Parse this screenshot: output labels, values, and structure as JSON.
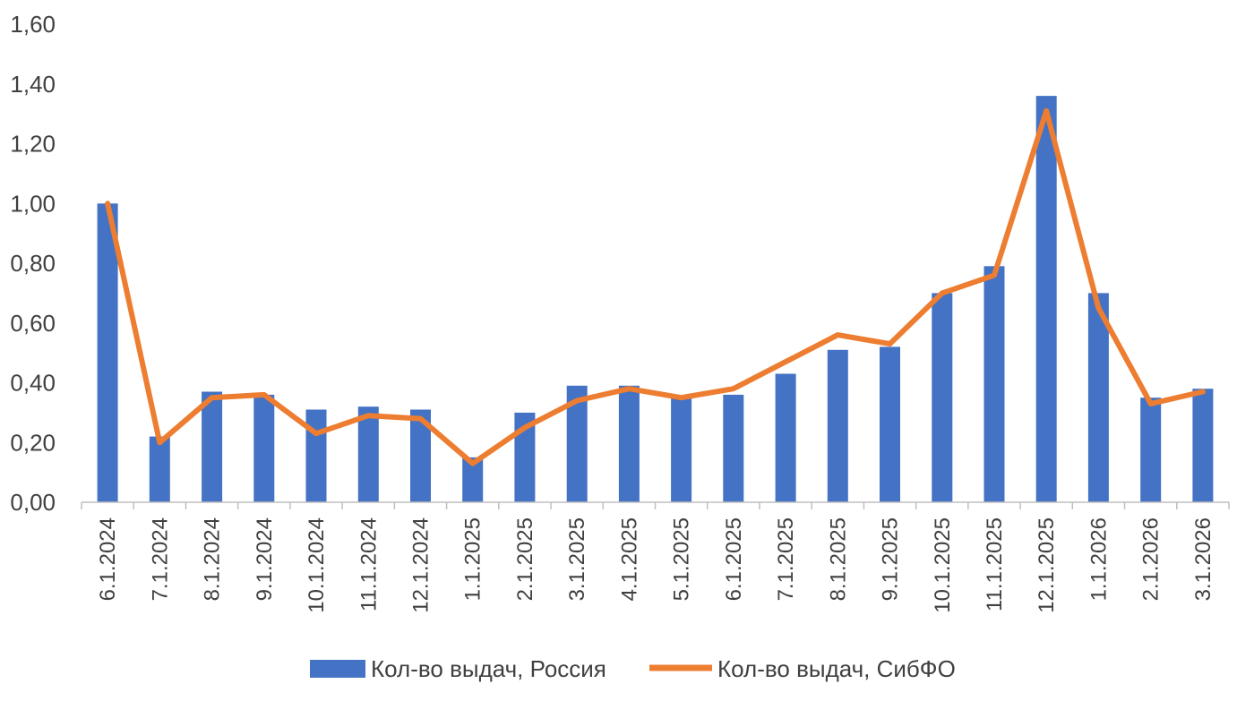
{
  "chart_data": {
    "type": "bar+line",
    "title": "",
    "xlabel": "",
    "ylabel": "",
    "ylim": [
      0,
      1.6
    ],
    "yticks": [
      "0,00",
      "0,20",
      "0,40",
      "0,60",
      "0,80",
      "1,00",
      "1,20",
      "1,40",
      "1,60"
    ],
    "ytick_values": [
      0,
      0.2,
      0.4,
      0.6,
      0.8,
      1.0,
      1.2,
      1.4,
      1.6
    ],
    "categories": [
      "6.1.2024",
      "7.1.2024",
      "8.1.2024",
      "9.1.2024",
      "10.1.2024",
      "11.1.2024",
      "12.1.2024",
      "1.1.2025",
      "2.1.2025",
      "3.1.2025",
      "4.1.2025",
      "5.1.2025",
      "6.1.2025",
      "7.1.2025",
      "8.1.2025",
      "9.1.2025",
      "10.1.2025",
      "11.1.2025",
      "12.1.2025",
      "1.1.2026",
      "2.1.2026",
      "3.1.2026"
    ],
    "series": [
      {
        "name": "Кол-во выдач, Россия",
        "kind": "bar",
        "color": "#4472C4",
        "values": [
          1.0,
          0.22,
          0.37,
          0.36,
          0.31,
          0.32,
          0.31,
          0.15,
          0.3,
          0.39,
          0.39,
          0.35,
          0.36,
          0.43,
          0.51,
          0.52,
          0.7,
          0.79,
          1.36,
          0.7,
          0.35,
          0.38
        ]
      },
      {
        "name": "Кол-во выдач, СибФО",
        "kind": "line",
        "color": "#ED7D31",
        "values": [
          1.0,
          0.2,
          0.35,
          0.36,
          0.23,
          0.29,
          0.28,
          0.13,
          0.25,
          0.34,
          0.38,
          0.35,
          0.38,
          0.47,
          0.56,
          0.53,
          0.7,
          0.76,
          1.31,
          0.65,
          0.33,
          0.37
        ]
      }
    ],
    "legend_position": "bottom-center",
    "grid": false
  }
}
